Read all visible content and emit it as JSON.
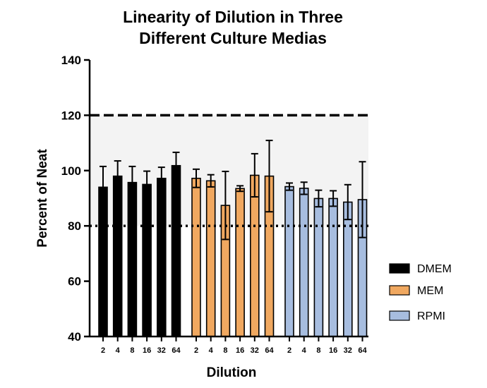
{
  "chart_data": {
    "type": "bar",
    "title_lines": [
      "Linearity of Dilution in Three",
      "Different Culture Medias"
    ],
    "xlabel": "Dilution",
    "ylabel": "Percent of Neat",
    "ylim": [
      40,
      140
    ],
    "yticks": [
      40,
      60,
      80,
      100,
      120,
      140
    ],
    "categories": [
      "2",
      "4",
      "8",
      "16",
      "32",
      "64"
    ],
    "acceptance_band": [
      80,
      120
    ],
    "reference_lines": [
      {
        "value": 120,
        "style": "dashed"
      },
      {
        "value": 80,
        "style": "dotted"
      }
    ],
    "series": [
      {
        "name": "DMEM",
        "color": "#000000",
        "values": [
          94.0,
          98.0,
          95.7,
          95.0,
          97.2,
          101.8
        ],
        "errors": [
          7.5,
          5.5,
          5.8,
          4.8,
          4.0,
          4.8
        ]
      },
      {
        "name": "MEM",
        "color": "#F0A860",
        "values": [
          97.2,
          96.3,
          87.4,
          93.5,
          98.3,
          98.0
        ],
        "errors": [
          3.3,
          2.2,
          12.3,
          1.0,
          7.8,
          12.9
        ]
      },
      {
        "name": "RPMI",
        "color": "#A7BDDF",
        "values": [
          94.2,
          93.6,
          89.9,
          89.9,
          88.6,
          89.5
        ],
        "errors": [
          1.3,
          2.2,
          3.0,
          2.8,
          6.3,
          13.7
        ]
      }
    ],
    "legend_position": "right",
    "grid": false
  }
}
